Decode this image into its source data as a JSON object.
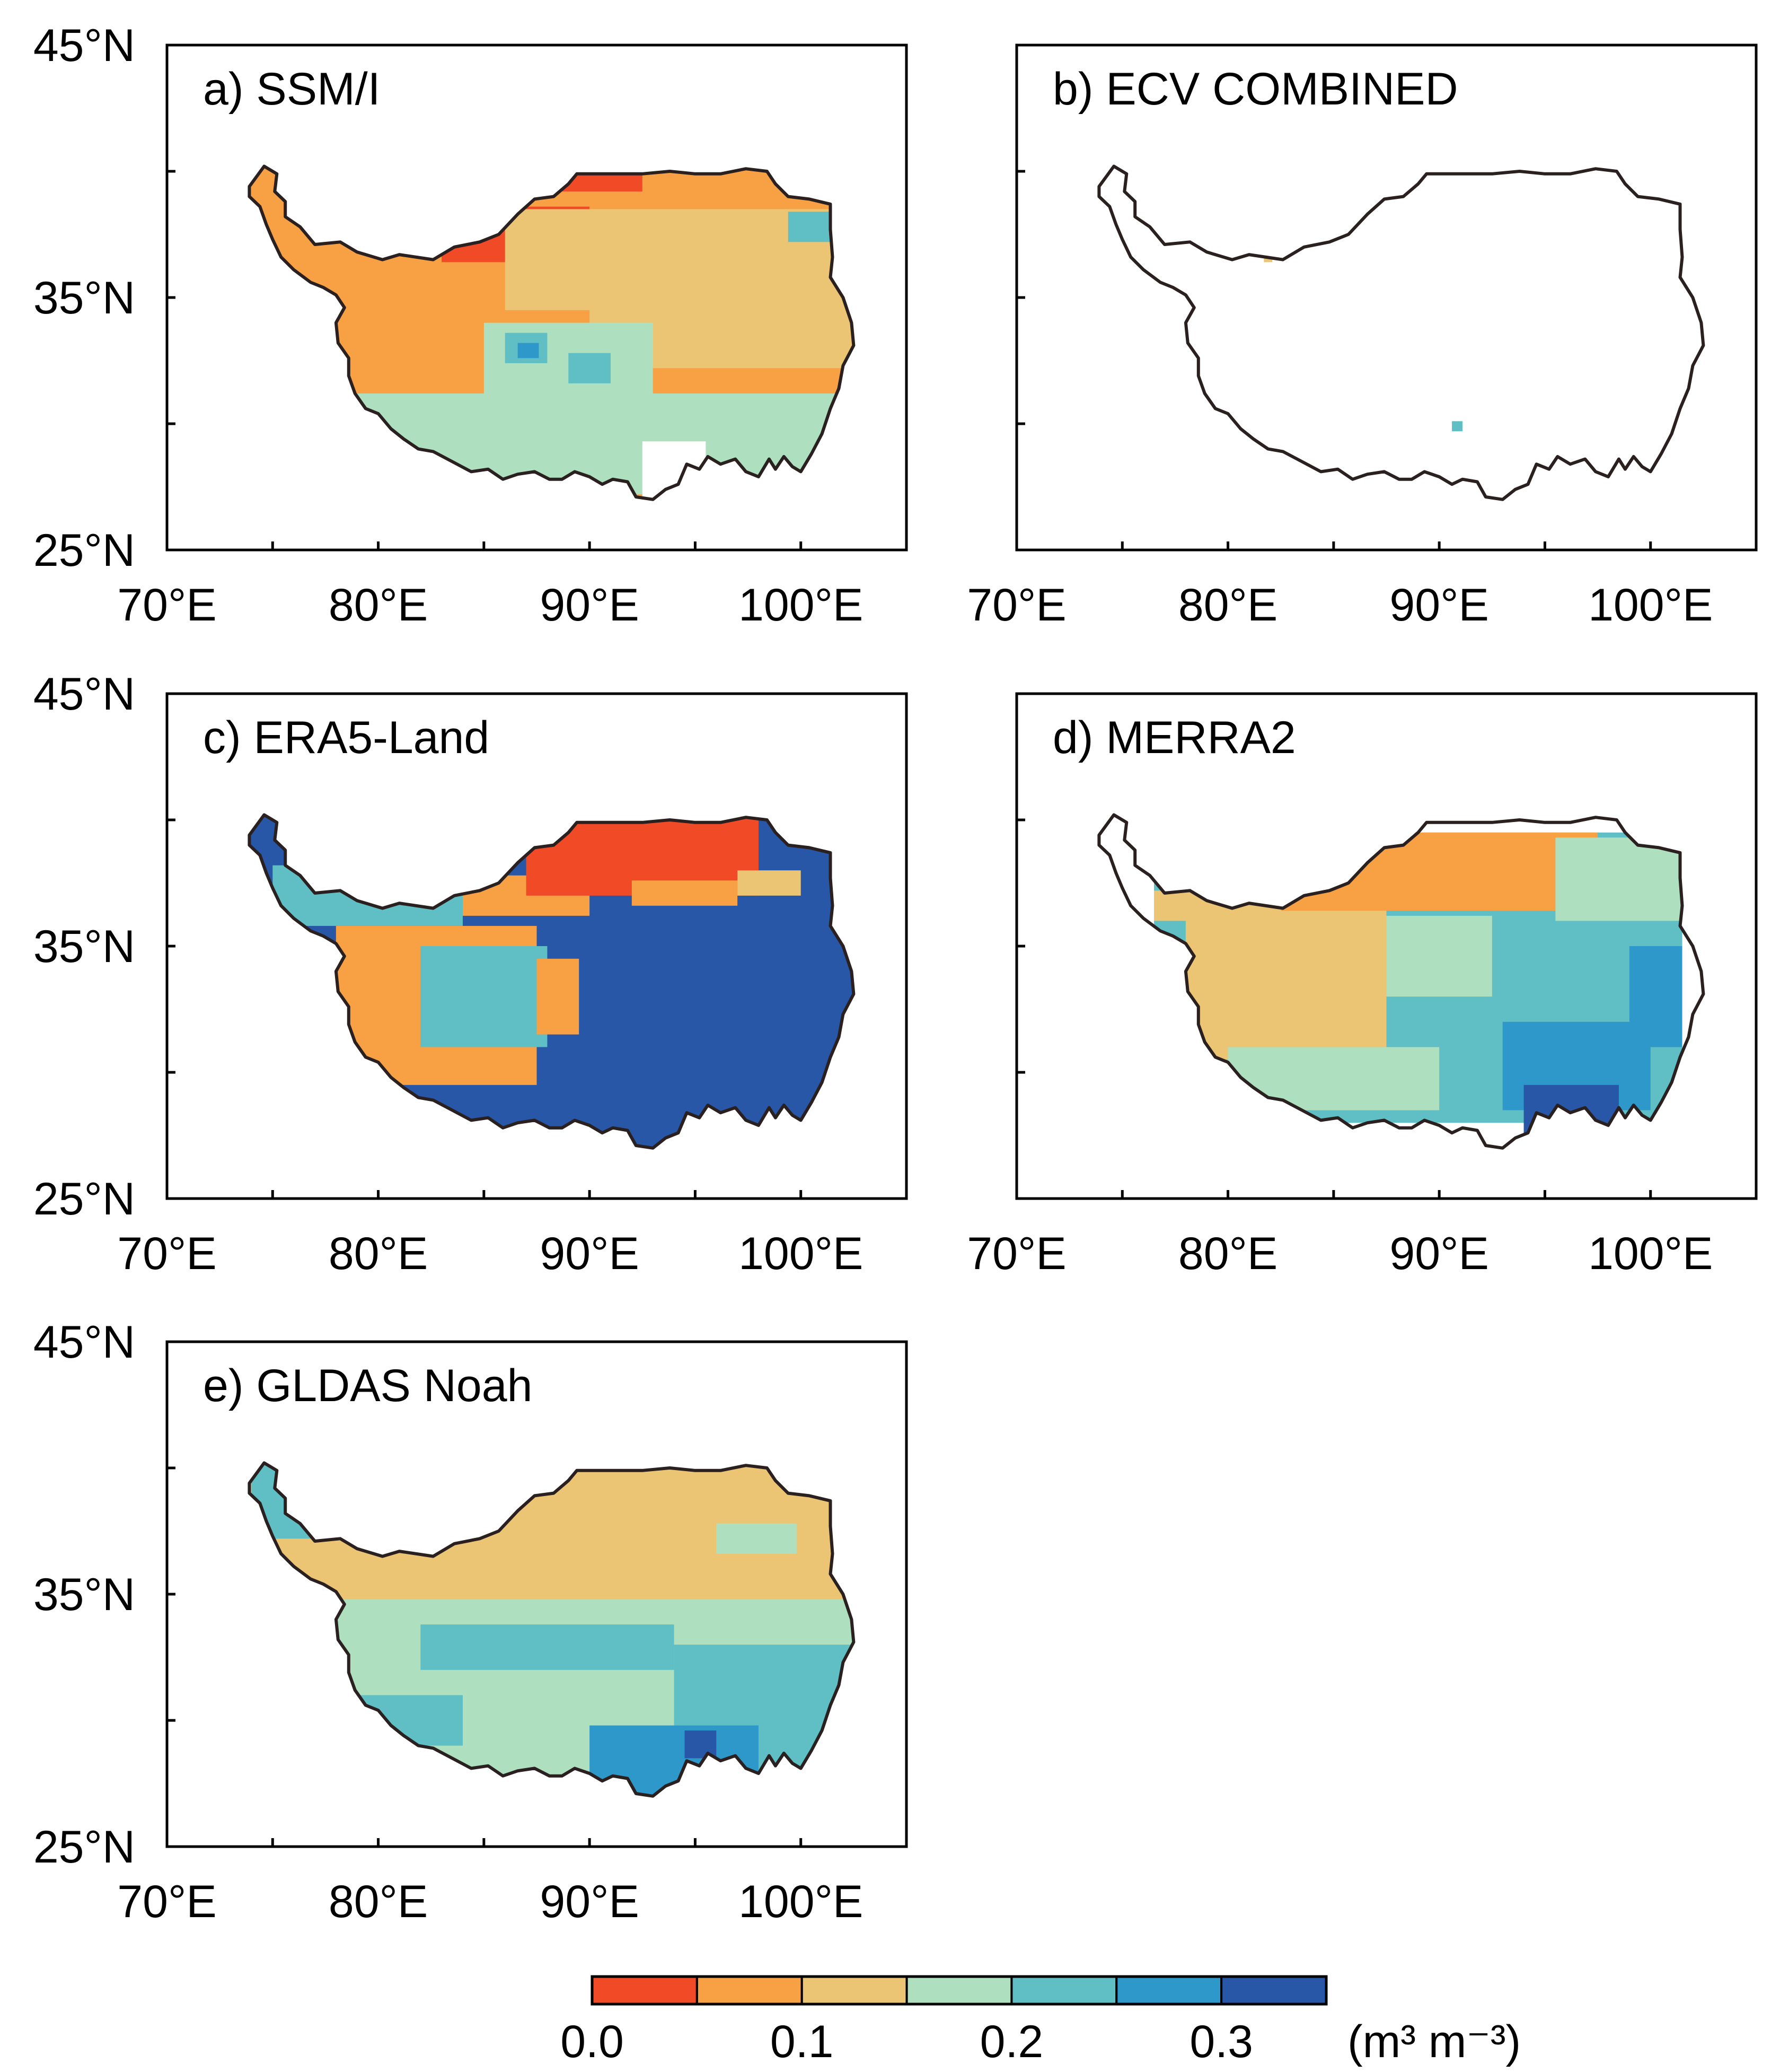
{
  "panels": [
    {
      "id": "a",
      "label": "a) SSM/I",
      "coverage": "full",
      "scheme": "ssmi"
    },
    {
      "id": "b",
      "label": "b) ECV COMBINED",
      "coverage": "sparse",
      "scheme": "ecv"
    },
    {
      "id": "c",
      "label": "c) ERA5-Land",
      "coverage": "full",
      "scheme": "era5"
    },
    {
      "id": "d",
      "label": "d) MERRA2",
      "coverage": "partial",
      "scheme": "merra2"
    },
    {
      "id": "e",
      "label": "e) GLDAS Noah",
      "coverage": "full",
      "scheme": "gldas"
    }
  ],
  "axes": {
    "lon_range": [
      70,
      105
    ],
    "lat_range": [
      25,
      45
    ],
    "x_ticks": [
      "70°E",
      "80°E",
      "90°E",
      "100°E"
    ],
    "y_ticks": [
      "45°N",
      "35°N",
      "25°N"
    ]
  },
  "colorbar": {
    "bins": [
      {
        "range": [
          0.0,
          0.05
        ],
        "color": "#f04a26"
      },
      {
        "range": [
          0.05,
          0.1
        ],
        "color": "#f7a044"
      },
      {
        "range": [
          0.1,
          0.15
        ],
        "color": "#ebc574"
      },
      {
        "range": [
          0.15,
          0.2
        ],
        "color": "#aee0bf"
      },
      {
        "range": [
          0.2,
          0.25
        ],
        "color": "#5fbfc4"
      },
      {
        "range": [
          0.25,
          0.3
        ],
        "color": "#2f98ca"
      },
      {
        "range": [
          0.3,
          0.35
        ],
        "color": "#2757a6"
      }
    ],
    "tick_labels": [
      "0.0",
      "0.1",
      "0.2",
      "0.3"
    ],
    "unit_label": "(m³ m⁻³)"
  },
  "colors": {
    "outline": "#2a2020",
    "background": "#ffffff"
  }
}
